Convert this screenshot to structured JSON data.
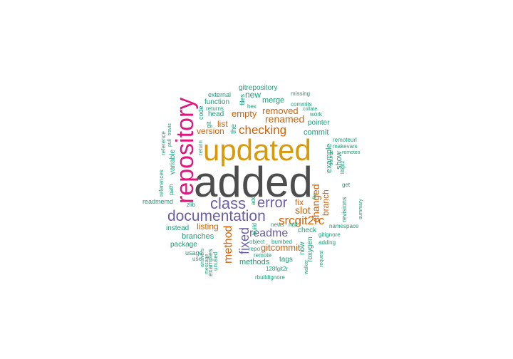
{
  "palette": {
    "grey": "#4d4d4d",
    "gold": "#d89a0a",
    "magenta": "#e0187e",
    "purple": "#6a5ea8",
    "orange": "#d95f02",
    "teal": "#1b9e77"
  },
  "words": [
    {
      "text": "added",
      "color": "grey"
    },
    {
      "text": "updated",
      "color": "gold"
    },
    {
      "text": "repository",
      "color": "magenta"
    },
    {
      "text": "documentation",
      "color": "purple"
    },
    {
      "text": "class",
      "color": "purple"
    },
    {
      "text": "error",
      "color": "purple"
    },
    {
      "text": "checking",
      "color": "orange"
    },
    {
      "text": "srcgit2rc",
      "color": "orange"
    },
    {
      "text": "readme",
      "color": "purple"
    },
    {
      "text": "fixed",
      "color": "purple"
    },
    {
      "text": "method",
      "color": "orange"
    },
    {
      "text": "changed",
      "color": "orange"
    },
    {
      "text": "renamed",
      "color": "orange"
    },
    {
      "text": "removed",
      "color": "orange"
    },
    {
      "text": "slot",
      "color": "orange"
    },
    {
      "text": "empty",
      "color": "orange"
    },
    {
      "text": "branch",
      "color": "orange"
    },
    {
      "text": "gitcommit",
      "color": "orange"
    },
    {
      "text": "fix",
      "color": "orange"
    },
    {
      "text": "list",
      "color": "orange"
    },
    {
      "text": "version",
      "color": "orange"
    },
    {
      "text": "listing",
      "color": "orange"
    },
    {
      "text": "new",
      "color": "teal"
    },
    {
      "text": "merge",
      "color": "teal"
    },
    {
      "text": "commit",
      "color": "teal"
    },
    {
      "text": "example",
      "color": "teal"
    },
    {
      "text": "show",
      "color": "teal"
    },
    {
      "text": "the",
      "color": "teal"
    },
    {
      "text": "gitrepository",
      "color": "teal"
    },
    {
      "text": "function",
      "color": "teal"
    },
    {
      "text": "head",
      "color": "teal"
    },
    {
      "text": "external",
      "color": "teal"
    },
    {
      "text": "files",
      "color": "teal"
    },
    {
      "text": "hex",
      "color": "teal"
    },
    {
      "text": "returns",
      "color": "teal"
    },
    {
      "text": "git",
      "color": "teal"
    },
    {
      "text": "code",
      "color": "teal"
    },
    {
      "text": "variable",
      "color": "teal"
    },
    {
      "text": "pointer",
      "color": "teal"
    },
    {
      "text": "commits",
      "color": "teal"
    },
    {
      "text": "missing",
      "color": "teal"
    },
    {
      "text": "collate",
      "color": "teal"
    },
    {
      "text": "work",
      "color": "teal"
    },
    {
      "text": "remoteurl",
      "color": "teal"
    },
    {
      "text": "makevars",
      "color": "teal"
    },
    {
      "text": "remotes",
      "color": "teal"
    },
    {
      "text": "source",
      "color": "teal"
    },
    {
      "text": "libgit2",
      "color": "teal"
    },
    {
      "text": "get",
      "color": "teal"
    },
    {
      "text": "revisions",
      "color": "teal"
    },
    {
      "text": "summary",
      "color": "teal"
    },
    {
      "text": "namespace",
      "color": "teal"
    },
    {
      "text": "gitignore",
      "color": "teal"
    },
    {
      "text": "adding",
      "color": "teal"
    },
    {
      "text": "request",
      "color": "teal"
    },
    {
      "text": "check",
      "color": "teal"
    },
    {
      "text": "roxygen",
      "color": "teal"
    },
    {
      "text": "now",
      "color": "teal"
    },
    {
      "text": "walker",
      "color": "teal"
    },
    {
      "text": "tags",
      "color": "teal"
    },
    {
      "text": "128fgit2r",
      "color": "teal"
    },
    {
      "text": "rbuildignore",
      "color": "teal"
    },
    {
      "text": "bumbed",
      "color": "teal"
    },
    {
      "text": "object",
      "color": "teal"
    },
    {
      "text": "repo",
      "color": "teal"
    },
    {
      "text": "remote",
      "color": "teal"
    },
    {
      "text": "methods",
      "color": "teal"
    },
    {
      "text": "message",
      "color": "teal"
    },
    {
      "text": "unused",
      "color": "teal"
    },
    {
      "text": "examples",
      "color": "teal"
    },
    {
      "text": "build",
      "color": "teal"
    },
    {
      "text": "news",
      "color": "teal"
    },
    {
      "text": "null",
      "color": "teal"
    },
    {
      "text": "instead",
      "color": "teal"
    },
    {
      "text": "branches",
      "color": "teal"
    },
    {
      "text": "package",
      "color": "teal"
    },
    {
      "text": "usage",
      "color": "teal"
    },
    {
      "text": "use",
      "color": "teal"
    },
    {
      "text": "answers",
      "color": "teal"
    },
    {
      "text": "zlib",
      "color": "teal"
    },
    {
      "text": "readmemd",
      "color": "teal"
    },
    {
      "text": "path",
      "color": "teal"
    },
    {
      "text": "references",
      "color": "teal"
    },
    {
      "text": "reference",
      "color": "teal"
    },
    {
      "text": "pull",
      "color": "teal"
    },
    {
      "text": "travis",
      "color": "teal"
    },
    {
      "text": "return",
      "color": "teal"
    },
    {
      "text": "add",
      "color": "teal"
    },
    {
      "text": "file",
      "color": "teal"
    }
  ]
}
